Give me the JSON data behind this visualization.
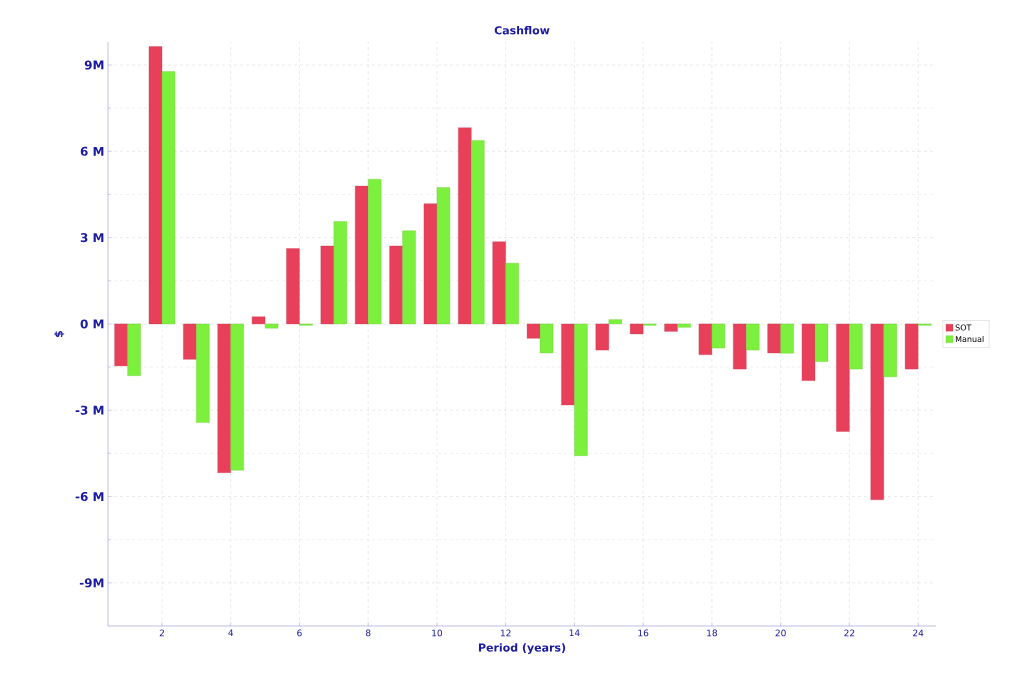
{
  "chart_data": {
    "type": "bar",
    "title": "Cashflow",
    "xlabel": "Period (years)",
    "ylabel": "$",
    "x": [
      1,
      2,
      3,
      4,
      5,
      6,
      7,
      8,
      9,
      10,
      11,
      12,
      13,
      14,
      15,
      16,
      17,
      18,
      19,
      20,
      21,
      22,
      23,
      24
    ],
    "series": [
      {
        "name": "SOT",
        "color": "#e8405a",
        "values": [
          -1.46,
          9.64,
          -1.23,
          -5.17,
          0.25,
          2.62,
          2.71,
          4.79,
          2.71,
          4.18,
          6.82,
          2.86,
          -0.5,
          -2.82,
          -0.91,
          -0.35,
          -0.26,
          -1.07,
          -1.57,
          -1.01,
          -1.97,
          -3.74,
          -6.11,
          -1.57
        ]
      },
      {
        "name": "Manual",
        "color": "#7cf03c",
        "values": [
          -1.8,
          8.77,
          -3.43,
          -5.09,
          -0.15,
          -0.05,
          3.56,
          5.03,
          3.24,
          4.74,
          6.38,
          2.11,
          -1.01,
          -4.58,
          0.15,
          -0.05,
          -0.12,
          -0.84,
          -0.91,
          -1.02,
          -1.31,
          -1.57,
          -1.84,
          -0.05
        ]
      }
    ],
    "xlim": [
      0.43,
      24.52
    ],
    "xticks": [
      2,
      4,
      6,
      8,
      10,
      12,
      14,
      16,
      18,
      20,
      22,
      24
    ],
    "ylim": [
      -10.5,
      9.8
    ],
    "yticks": [
      {
        "value": -9,
        "label": "-9M"
      },
      {
        "value": -6,
        "label": "-6 M"
      },
      {
        "value": -3,
        "label": "-3 M"
      },
      {
        "value": 0,
        "label": "0 M"
      },
      {
        "value": 3,
        "label": "3 M"
      },
      {
        "value": 6,
        "label": "6 M"
      },
      {
        "value": 9,
        "label": "9M"
      }
    ],
    "grid": true,
    "legend": "right"
  }
}
